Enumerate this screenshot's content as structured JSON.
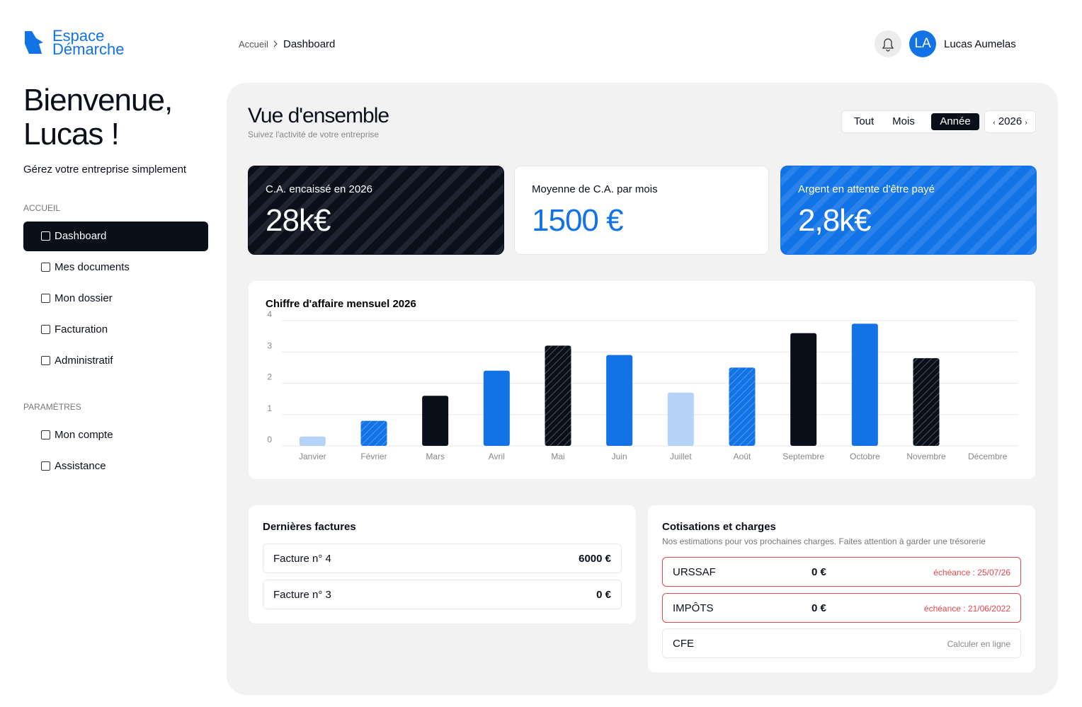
{
  "brand": {
    "line1": "Espace",
    "line2": "Démarche"
  },
  "breadcrumb": {
    "parent": "Accueil",
    "current": "Dashboard"
  },
  "user": {
    "initials": "LA",
    "name": "Lucas Aumelas"
  },
  "welcome": {
    "line1": "Bienvenue,",
    "line2": "Lucas !",
    "subtitle": "Gérez votre entreprise simplement"
  },
  "nav": [
    {
      "label": "ACCUEIL",
      "items": [
        {
          "label": "Dashboard",
          "active": true
        },
        {
          "label": "Mes documents"
        },
        {
          "label": "Mon dossier"
        },
        {
          "label": "Facturation"
        },
        {
          "label": "Administratif"
        }
      ]
    },
    {
      "label": "PARAMÈTRES",
      "items": [
        {
          "label": "Mon compte"
        },
        {
          "label": "Assistance"
        }
      ]
    }
  ],
  "overview": {
    "title": "Vue d'ensemble",
    "subtitle": "Suivez l'activité de votre entreprise",
    "periods": [
      {
        "label": "Tout"
      },
      {
        "label": "Mois"
      },
      {
        "label": "Année",
        "active": true
      }
    ],
    "year": "2026"
  },
  "kpis": [
    {
      "label": "C.A. encaissé en 2026",
      "value": "28k€",
      "theme": "dark"
    },
    {
      "label": "Moyenne de C.A. par mois",
      "value": "1500 €",
      "theme": "light"
    },
    {
      "label": "Argent en attente d'être payé",
      "value": "2,8k€",
      "theme": "blue"
    }
  ],
  "chart_data": {
    "type": "bar",
    "title": "Chiffre d'affaire mensuel 2026",
    "categories": [
      "Janvier",
      "Février",
      "Mars",
      "Avril",
      "Mai",
      "Juin",
      "Juillet",
      "Août",
      "Septembre",
      "Octobre",
      "Novembre",
      "Décembre"
    ],
    "values": [
      0.3,
      0.8,
      1.6,
      2.4,
      3.2,
      2.9,
      1.7,
      2.5,
      3.6,
      3.9,
      2.8,
      0
    ],
    "colors": [
      "#b5d3f7",
      "#1273e6",
      "#0a0f1a",
      "#1273e6",
      "#0a0f1a",
      "#1273e6",
      "#b5d3f7",
      "#1273e6",
      "#0a0f1a",
      "#1273e6",
      "#0a0f1a",
      "#1273e6"
    ],
    "hatched": [
      false,
      true,
      false,
      false,
      true,
      false,
      false,
      true,
      false,
      false,
      true,
      false
    ],
    "ylim": [
      0,
      4
    ],
    "yticks": [
      0,
      1,
      2,
      3,
      4
    ],
    "grid": true
  },
  "invoices": {
    "title": "Dernières factures",
    "rows": [
      {
        "label": "Facture n° 4",
        "amount": "6000 €"
      },
      {
        "label": "Facture n° 3",
        "amount": "0 €"
      }
    ]
  },
  "charges": {
    "title": "Cotisations et charges",
    "subtitle": "Nos estimations pour vos prochaines charges. Faites attention à garder une trésorerie",
    "rows": [
      {
        "name": "URSSAF",
        "amount": "0 €",
        "due": "échéance : 25/07/26",
        "alert": true
      },
      {
        "name": "IMPÔTS",
        "amount": "0 €",
        "due": "échéance : 21/06/2022",
        "alert": true
      },
      {
        "name": "CFE",
        "action": "Calculer en ligne"
      }
    ]
  }
}
